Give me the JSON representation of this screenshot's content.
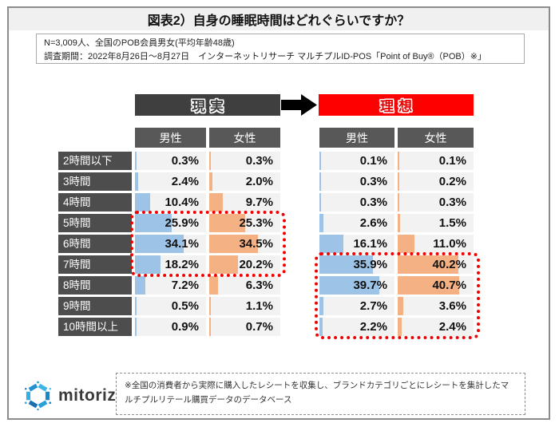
{
  "title": "図表2）自身の睡眠時間はどれぐらいですか？",
  "survey_info": {
    "line1": "N=3,009人、全国のPOB会員男女(平均年齢48歳)",
    "line2": "調査期間：2022年8月26日～8月27日　インターネットリサーチ マルチプルID-POS「Point of Buy®（POB）※」"
  },
  "chart_data": {
    "type": "table",
    "description": "横棒（データバー）付き比較テーブル：現実と理想の睡眠時間（男女別、%）",
    "categories": [
      "2時間以下",
      "3時間",
      "4時間",
      "5時間",
      "6時間",
      "7時間",
      "8時間",
      "9時間",
      "10時間以上"
    ],
    "groups": [
      {
        "label": "現実",
        "banner_bg": "#3F3F3F",
        "banner_text_color": "#3F3F3F",
        "series": [
          {
            "name": "男性",
            "values": [
              0.3,
              2.4,
              10.4,
              25.9,
              34.1,
              18.2,
              7.2,
              0.5,
              0.9
            ]
          },
          {
            "name": "女性",
            "values": [
              0.3,
              2.0,
              9.7,
              25.3,
              34.5,
              20.2,
              6.3,
              1.1,
              0.7
            ]
          }
        ],
        "highlight_rows": [
          3,
          4,
          5
        ]
      },
      {
        "label": "理想",
        "banner_bg": "#FE0000",
        "banner_text_color": "#E60000",
        "series": [
          {
            "name": "男性",
            "values": [
              0.1,
              0.3,
              0.3,
              2.6,
              16.1,
              35.9,
              39.7,
              2.7,
              2.2
            ]
          },
          {
            "name": "女性",
            "values": [
              0.1,
              0.2,
              0.3,
              1.5,
              11.0,
              40.2,
              40.7,
              3.6,
              2.4
            ]
          }
        ],
        "highlight_rows": [
          5,
          6,
          7,
          8
        ]
      }
    ],
    "value_format": "percent_one_decimal",
    "bar_scale_max": 50,
    "male_bar_color": "#9DC3E6",
    "female_bar_color": "#F4B183",
    "highlight_border_color": "#F20000",
    "legend_position": "none",
    "grid": false
  },
  "footer": {
    "brand": "mitoriz",
    "note": "※全国の消費者から実際に購入したレシートを収集し、ブランドカテゴリごとにレシートを集計したマルチプルリテール購買データのデータベース"
  }
}
